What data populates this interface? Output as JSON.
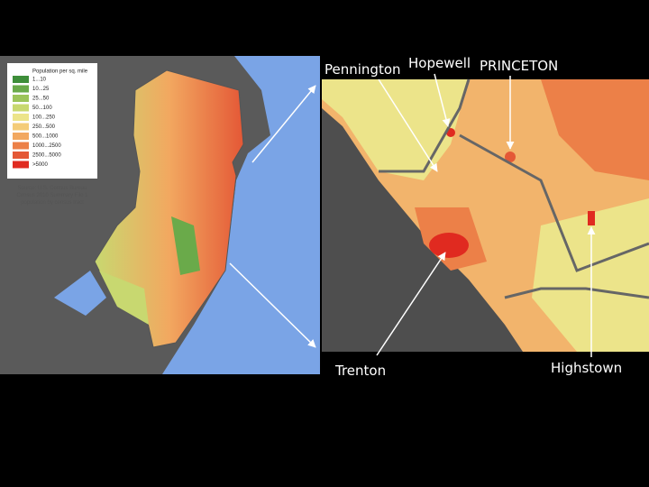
{
  "legend": {
    "title": "Population per sq. mile",
    "items": [
      {
        "label": "1...10",
        "color": "#3e8e3a"
      },
      {
        "label": "10...25",
        "color": "#6aaa4a"
      },
      {
        "label": "25...50",
        "color": "#9cc45a"
      },
      {
        "label": "50...100",
        "color": "#c8d870"
      },
      {
        "label": "100...250",
        "color": "#ece48a"
      },
      {
        "label": "250...500",
        "color": "#f4cc78"
      },
      {
        "label": "500...1000",
        "color": "#f2a860"
      },
      {
        "label": "1000...2500",
        "color": "#ec8048"
      },
      {
        "label": "2500...5000",
        "color": "#e45836"
      },
      {
        "label": ">5000",
        "color": "#e02a20"
      }
    ]
  },
  "source": [
    "Source: U.S. Census Bureau",
    "Census 2010 Summary File 1",
    "population by census tract"
  ],
  "places": {
    "pennington": "Pennington",
    "hopewell": "Hopewell",
    "princeton": "PRINCETON",
    "trenton": "Trenton",
    "highstown": "Highstown"
  }
}
